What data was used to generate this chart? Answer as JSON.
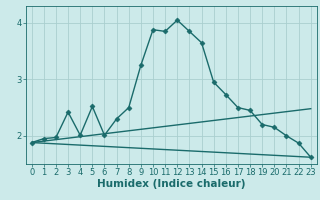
{
  "title": "",
  "xlabel": "Humidex (Indice chaleur)",
  "bg_color": "#cceaea",
  "line_color": "#1a6b6b",
  "grid_color": "#aacfcf",
  "xlim": [
    -0.5,
    23.5
  ],
  "ylim": [
    1.5,
    4.3
  ],
  "yticks": [
    2,
    3,
    4
  ],
  "xticks": [
    0,
    1,
    2,
    3,
    4,
    5,
    6,
    7,
    8,
    9,
    10,
    11,
    12,
    13,
    14,
    15,
    16,
    17,
    18,
    19,
    20,
    21,
    22,
    23
  ],
  "line1_x": [
    0,
    1,
    2,
    3,
    4,
    5,
    6,
    7,
    8,
    9,
    10,
    11,
    12,
    13,
    14,
    15,
    16,
    17,
    18,
    19,
    20,
    21,
    22,
    23
  ],
  "line1_y": [
    1.88,
    1.95,
    1.97,
    2.42,
    2.01,
    2.52,
    2.01,
    2.3,
    2.5,
    3.25,
    3.88,
    3.85,
    4.05,
    3.85,
    3.65,
    2.95,
    2.73,
    2.5,
    2.45,
    2.2,
    2.15,
    2.0,
    1.87,
    1.62
  ],
  "line2_x": [
    0,
    23
  ],
  "line2_y": [
    1.88,
    1.62
  ],
  "line3_x": [
    0,
    23
  ],
  "line3_y": [
    1.88,
    2.48
  ],
  "marker": "D",
  "marker_size": 2.5,
  "linewidth": 1.0,
  "tick_fontsize": 6.0,
  "xlabel_fontsize": 7.5
}
